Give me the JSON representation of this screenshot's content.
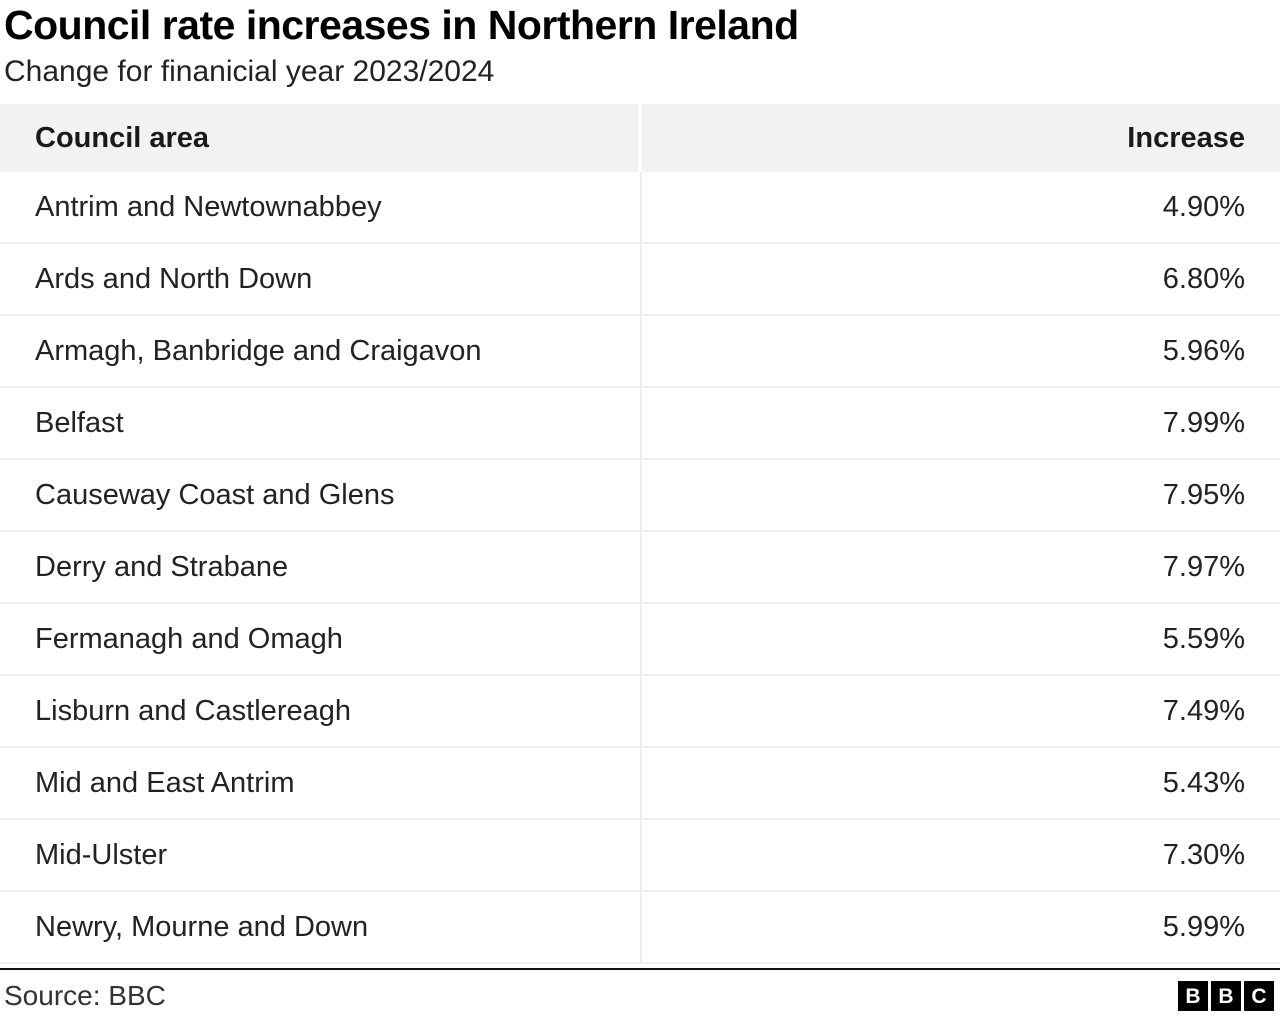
{
  "header": {
    "title": "Council rate increases in Northern Ireland",
    "subtitle": "Change for finanicial year 2023/2024"
  },
  "table": {
    "columns": [
      "Council area",
      "Increase"
    ],
    "rows": [
      {
        "area": "Antrim and Newtownabbey",
        "increase": "4.90%"
      },
      {
        "area": "Ards and North Down",
        "increase": "6.80%"
      },
      {
        "area": "Armagh, Banbridge and Craigavon",
        "increase": "5.96%"
      },
      {
        "area": "Belfast",
        "increase": "7.99%"
      },
      {
        "area": "Causeway Coast and Glens",
        "increase": "7.95%"
      },
      {
        "area": "Derry and Strabane",
        "increase": "7.97%"
      },
      {
        "area": "Fermanagh and Omagh",
        "increase": "5.59%"
      },
      {
        "area": "Lisburn and Castlereagh",
        "increase": "7.49%"
      },
      {
        "area": "Mid and East Antrim",
        "increase": "5.43%"
      },
      {
        "area": "Mid-Ulster",
        "increase": "7.30%"
      },
      {
        "area": "Newry, Mourne and Down",
        "increase": "5.99%"
      }
    ]
  },
  "footer": {
    "source": "Source: BBC",
    "logo_letters": [
      "B",
      "B",
      "C"
    ]
  },
  "colors": {
    "header_background": "#f2f2f2",
    "row_divider": "#ececec",
    "footer_rule": "#111111",
    "text": "#222222",
    "logo_background": "#000000"
  },
  "chart_data": {
    "type": "table",
    "title": "Council rate increases in Northern Ireland",
    "subtitle": "Change for finanicial year 2023/2024",
    "columns": [
      "Council area",
      "Increase"
    ],
    "categories": [
      "Antrim and Newtownabbey",
      "Ards and North Down",
      "Armagh, Banbridge and Craigavon",
      "Belfast",
      "Causeway Coast and Glens",
      "Derry and Strabane",
      "Fermanagh and Omagh",
      "Lisburn and Castlereagh",
      "Mid and East Antrim",
      "Mid-Ulster",
      "Newry, Mourne and Down"
    ],
    "values": [
      4.9,
      6.8,
      5.96,
      7.99,
      7.95,
      7.97,
      5.59,
      7.49,
      5.43,
      7.3,
      5.99
    ],
    "unit": "%",
    "source": "BBC"
  }
}
